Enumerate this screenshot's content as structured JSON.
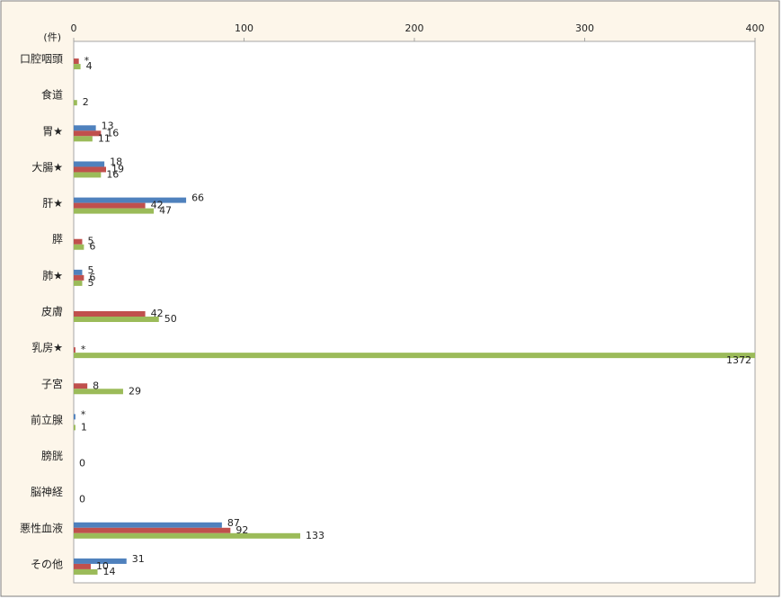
{
  "chart_data": {
    "type": "bar",
    "orientation": "horizontal",
    "unit_label": "(件)",
    "categories": [
      "口腔咽頭",
      "食道",
      "胃★",
      "大腸★",
      "肝★",
      "膵",
      "肺★",
      "皮膚",
      "乳房★",
      "子宮",
      "前立腺",
      "膀胱",
      "脳神経",
      "悪性血液",
      "その他"
    ],
    "series": [
      {
        "color": "#4f81bd",
        "values": [
          null,
          null,
          13,
          18,
          66,
          null,
          5,
          null,
          null,
          null,
          1,
          null,
          null,
          87,
          31
        ],
        "value_labels": [
          null,
          null,
          "13",
          "18",
          "66",
          null,
          "5",
          null,
          null,
          null,
          "*",
          null,
          null,
          "87",
          "31"
        ]
      },
      {
        "color": "#c0504d",
        "values": [
          3,
          null,
          16,
          19,
          42,
          5,
          6,
          42,
          1,
          8,
          null,
          null,
          null,
          92,
          10
        ],
        "value_labels": [
          "*",
          null,
          "16",
          "19",
          "42",
          "5",
          "6",
          "42",
          "*",
          "8",
          null,
          null,
          null,
          "92",
          "10"
        ]
      },
      {
        "color": "#9bbb59",
        "values": [
          4,
          2,
          11,
          16,
          47,
          6,
          5,
          50,
          1372,
          29,
          1,
          0,
          0,
          133,
          14
        ],
        "value_labels": [
          "4",
          "2",
          "11",
          "16",
          "47",
          "6",
          "5",
          "50",
          "1372",
          "29",
          "1",
          "0",
          "0",
          "133",
          "14"
        ]
      }
    ],
    "xlim": [
      0,
      400
    ],
    "xticks": [
      0,
      100,
      200,
      300,
      400
    ]
  }
}
